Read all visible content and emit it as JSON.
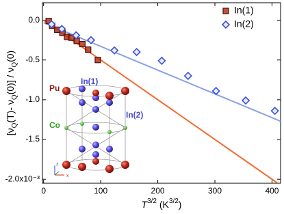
{
  "chart_data": {
    "type": "scatter",
    "xlabel": [
      "T",
      "3/2",
      " (K",
      "3/2",
      ")"
    ],
    "ylabel": [
      "[ν",
      "Q",
      "(T)- ν",
      "Q",
      "(0)] / ν",
      "Q",
      "(0)"
    ],
    "xlim": [
      -2,
      415
    ],
    "ylim": [
      -2.05,
      0.22
    ],
    "xticks": [
      0,
      100,
      200,
      300,
      400
    ],
    "yticks": [
      {
        "value": 0.0,
        "label": "0.0"
      },
      -0.5,
      {
        "value": -1.0,
        "label": "-1.0"
      },
      -1.5,
      {
        "value": -2.0,
        "label": "-2.0x10⁻³"
      }
    ],
    "legend": "top-right",
    "series": [
      {
        "name": "In(1)",
        "color": "#b5331a",
        "marker": "square",
        "x": [
          9,
          15,
          24,
          33,
          41,
          49,
          58,
          68,
          78,
          95
        ],
        "values": [
          -0.01,
          -0.07,
          -0.12,
          -0.16,
          -0.21,
          -0.22,
          -0.26,
          -0.3,
          -0.37,
          -0.5
        ]
      },
      {
        "name": "In(2)",
        "color": "#3b4fd6",
        "marker": "diamond",
        "x": [
          14,
          32,
          57,
          83,
          124,
          163,
          207,
          253,
          302,
          354,
          405
        ],
        "values": [
          -0.05,
          -0.11,
          -0.19,
          -0.25,
          -0.38,
          -0.4,
          -0.51,
          -0.7,
          -0.89,
          -1.01,
          -1.14
        ]
      }
    ],
    "fit_lines": [
      {
        "color": "#8aa2e6",
        "x": [
          0,
          415
        ],
        "values": [
          -0.03,
          -1.27
        ]
      },
      {
        "color": "#f26b2e",
        "x": [
          0,
          410
        ],
        "values": [
          0.0,
          -2.05
        ]
      }
    ]
  },
  "inset": {
    "labels": [
      "Pu",
      "In(1)",
      "Co",
      "In(2)"
    ],
    "axes": [
      "z",
      "x"
    ]
  }
}
